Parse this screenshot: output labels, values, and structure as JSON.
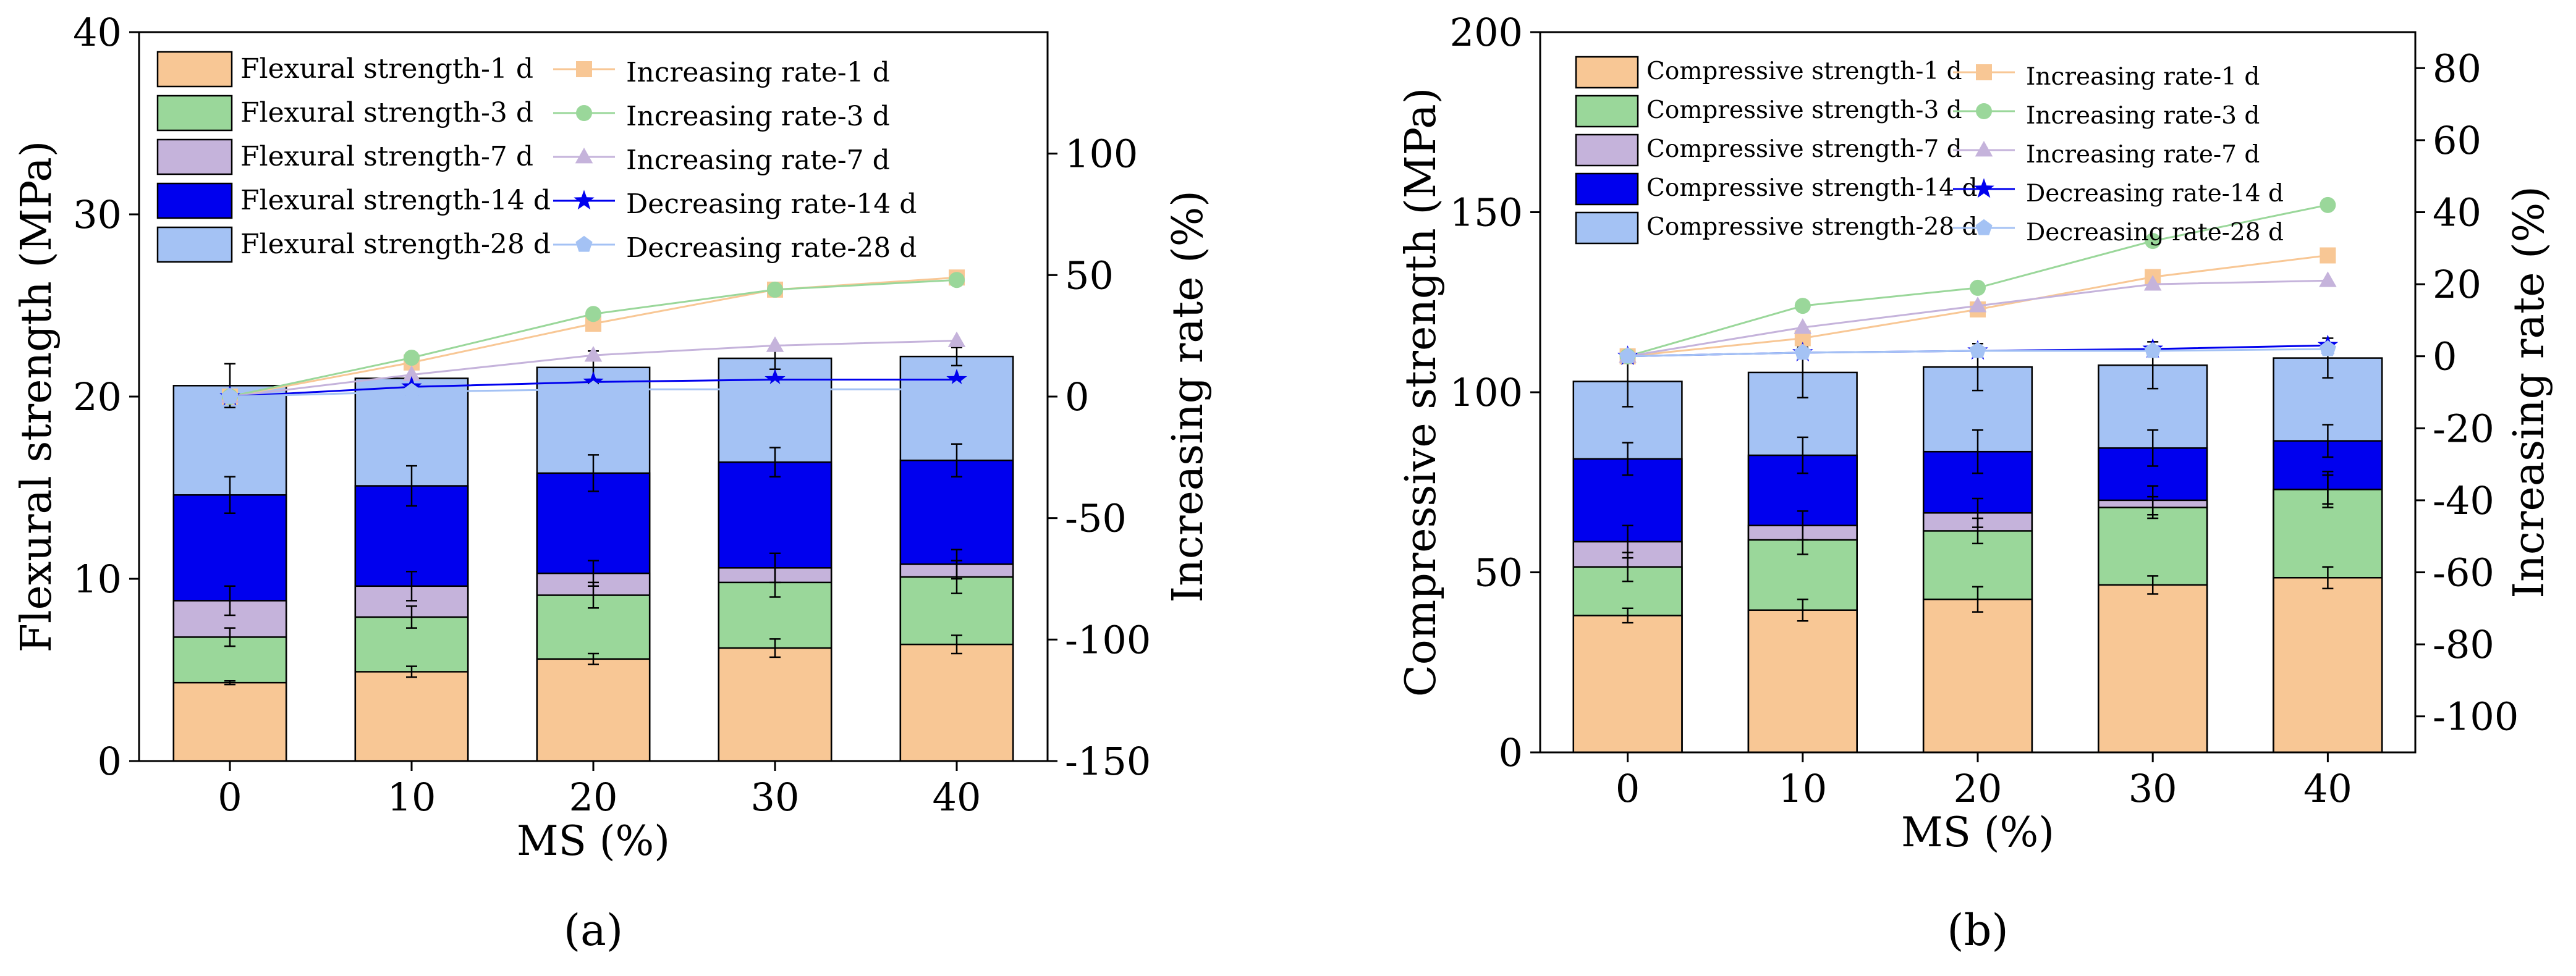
{
  "chart_data": [
    {
      "panel": "a",
      "caption": "(a)",
      "type": "bar",
      "stacked_overlay": true,
      "xlabel": "MS (%)",
      "ylabel": "Flexural strength (MPa)",
      "y2label": "Increasing rate (%)",
      "categories": [
        "0",
        "10",
        "20",
        "30",
        "40"
      ],
      "ylim": [
        0,
        40
      ],
      "yticks": [
        "0",
        "10",
        "20",
        "30",
        "40"
      ],
      "y2lim": [
        -150,
        150
      ],
      "y2ticks": [
        "-150",
        "-100",
        "-50",
        "0",
        "50",
        "100"
      ],
      "series": [
        {
          "name": "Flexural strength-1 d",
          "color": "#f8c795",
          "values": [
            4.3,
            4.9,
            5.6,
            6.2,
            6.4
          ],
          "errors": [
            0.1,
            0.3,
            0.3,
            0.5,
            0.5
          ]
        },
        {
          "name": "Flexural strength-3 d",
          "color": "#9ad79a",
          "values": [
            6.8,
            7.9,
            9.1,
            9.8,
            10.1
          ],
          "errors": [
            0.5,
            0.6,
            0.7,
            0.8,
            0.9
          ]
        },
        {
          "name": "Flexural strength-7 d",
          "color": "#c5b3db",
          "values": [
            8.8,
            9.6,
            10.3,
            10.6,
            10.8
          ],
          "errors": [
            0.8,
            0.8,
            0.7,
            0.8,
            0.8
          ]
        },
        {
          "name": "Flexural strength-14 d",
          "color": "#0000ee",
          "values": [
            14.6,
            15.1,
            15.8,
            16.4,
            16.5
          ],
          "errors": [
            1.0,
            1.1,
            1.0,
            0.8,
            0.9
          ]
        },
        {
          "name": "Flexural strength-28 d",
          "color": "#a4c2f4",
          "values": [
            20.6,
            21.0,
            21.6,
            22.1,
            22.2
          ],
          "errors": [
            1.2,
            1.0,
            0.9,
            0.6,
            0.5
          ]
        }
      ],
      "rate_series": [
        {
          "name": "Increasing rate-1 d",
          "color": "#f8c795",
          "marker": "square",
          "values": [
            0,
            14,
            30,
            44,
            49
          ]
        },
        {
          "name": "Increasing rate-3 d",
          "color": "#9ad79a",
          "marker": "circle",
          "values": [
            0,
            16,
            34,
            44,
            48
          ]
        },
        {
          "name": "Increasing rate-7 d",
          "color": "#c5b3db",
          "marker": "triangle",
          "values": [
            0,
            9,
            17,
            21,
            23
          ]
        },
        {
          "name": "Decreasing rate-14 d",
          "color": "#0000ee",
          "marker": "star",
          "values": [
            0,
            4,
            6,
            7,
            7
          ]
        },
        {
          "name": "Decreasing rate-28 d",
          "color": "#a4c2f4",
          "marker": "pentagon",
          "values": [
            0,
            2,
            3,
            3,
            3
          ]
        }
      ]
    },
    {
      "panel": "b",
      "caption": "(b)",
      "type": "bar",
      "stacked_overlay": true,
      "xlabel": "MS (%)",
      "ylabel": "Compressive strength (MPa)",
      "y2label": "Increasing rate (%)",
      "categories": [
        "0",
        "10",
        "20",
        "30",
        "40"
      ],
      "ylim": [
        0,
        200
      ],
      "yticks": [
        "0",
        "50",
        "100",
        "150",
        "200"
      ],
      "y2lim": [
        -110,
        90
      ],
      "y2ticks": [
        "-100",
        "-80",
        "-60",
        "-40",
        "-20",
        "0",
        "20",
        "40",
        "60",
        "80"
      ],
      "series": [
        {
          "name": "Compressive strength-1 d",
          "color": "#f8c795",
          "values": [
            38,
            39.5,
            42.5,
            46.5,
            48.5
          ],
          "errors": [
            2,
            3,
            3.5,
            2.5,
            3
          ]
        },
        {
          "name": "Compressive strength-3 d",
          "color": "#9ad79a",
          "values": [
            51.5,
            59,
            61.5,
            68,
            73
          ],
          "errors": [
            4,
            4,
            3.5,
            3,
            4
          ]
        },
        {
          "name": "Compressive strength-7 d",
          "color": "#c5b3db",
          "values": [
            58.5,
            63,
            66.5,
            70,
            73
          ],
          "errors": [
            4.5,
            4,
            4,
            4,
            5
          ]
        },
        {
          "name": "Compressive strength-14 d",
          "color": "#0000ee",
          "values": [
            81.5,
            82.5,
            83.5,
            84.5,
            86.5
          ],
          "errors": [
            4.5,
            5,
            6,
            5,
            4.5
          ]
        },
        {
          "name": "Compressive strength-28 d",
          "color": "#a4c2f4",
          "values": [
            103,
            105.5,
            107,
            107.5,
            109.5
          ],
          "errors": [
            7,
            7,
            6.5,
            6.5,
            5.5
          ]
        }
      ],
      "rate_series": [
        {
          "name": "Increasing rate-1 d",
          "color": "#f8c795",
          "marker": "square",
          "values": [
            0,
            5,
            13,
            22,
            28
          ]
        },
        {
          "name": "Increasing rate-3 d",
          "color": "#9ad79a",
          "marker": "circle",
          "values": [
            0,
            14,
            19,
            32,
            42
          ]
        },
        {
          "name": "Increasing rate-7 d",
          "color": "#c5b3db",
          "marker": "triangle",
          "values": [
            0,
            8,
            14,
            20,
            21
          ]
        },
        {
          "name": "Decreasing rate-14 d",
          "color": "#0000ee",
          "marker": "star",
          "values": [
            0,
            1,
            1.5,
            2,
            3
          ]
        },
        {
          "name": "Decreasing rate-28 d",
          "color": "#a4c2f4",
          "marker": "pentagon",
          "values": [
            0,
            1,
            1.5,
            1.5,
            2
          ]
        }
      ]
    }
  ]
}
